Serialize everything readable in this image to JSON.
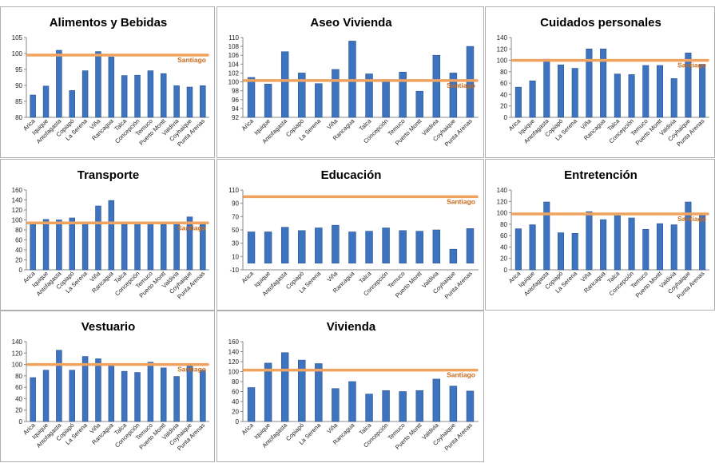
{
  "chart_data": [
    {
      "type": "bar",
      "title": "Alimentos y Bebidas",
      "categories": [
        "Arica",
        "Iquique",
        "Antofagasta",
        "Copiapó",
        "La Serena",
        "Viña",
        "Rancagua",
        "Talca",
        "Concepción",
        "Temuco",
        "Puerto Montt",
        "Valdivia",
        "Coyhaique",
        "Punta Arenas"
      ],
      "values": [
        87,
        89.8,
        101,
        88.4,
        94.6,
        100.6,
        98.9,
        93.1,
        93.2,
        94.6,
        93.7,
        89.9,
        89.5,
        89.9
      ],
      "reference": {
        "label": "Santiago",
        "value": 99.5
      },
      "ylim": [
        80,
        105
      ],
      "yticks": [
        80,
        85,
        90,
        95,
        100,
        105
      ],
      "bar_color": "#3d73bf",
      "reference_color": "#f0a35e"
    },
    {
      "type": "bar",
      "title": "Aseo Vivienda",
      "categories": [
        "Arica",
        "Iquique",
        "Antofagasta",
        "Copiapó",
        "La Serena",
        "Viña",
        "Rancagua",
        "Talca",
        "Concepción",
        "Temuco",
        "Puerto Montt",
        "Valdivia",
        "Coyhaique",
        "Punta Arenas"
      ],
      "values": [
        101,
        99.5,
        106.8,
        102,
        99.6,
        102.8,
        109.2,
        101.8,
        100.2,
        102.2,
        97.9,
        106,
        102,
        108
      ],
      "reference": {
        "label": "Santiago",
        "value": 100.3
      },
      "ylim": [
        92,
        110
      ],
      "yticks": [
        92,
        94,
        96,
        98,
        100,
        102,
        104,
        106,
        108,
        110
      ],
      "bar_color": "#3d73bf",
      "reference_color": "#f0a35e"
    },
    {
      "type": "bar",
      "title": "Cuidados personales",
      "categories": [
        "Arica",
        "Iquique",
        "Antofagasta",
        "Copiapó",
        "La Serena",
        "Viña",
        "Rancagua",
        "Talca",
        "Concepción",
        "Temuco",
        "Puerto Montt",
        "Valdivia",
        "Coyhaique",
        "Punta Arenas"
      ],
      "values": [
        53,
        64,
        102,
        92,
        86,
        120,
        120,
        76,
        75,
        91,
        91,
        68,
        113,
        93
      ],
      "reference": {
        "label": "Santiago",
        "value": 100
      },
      "ylim": [
        0,
        140
      ],
      "yticks": [
        0,
        20,
        40,
        60,
        80,
        100,
        120,
        140
      ],
      "bar_color": "#3d73bf",
      "reference_color": "#f0a35e"
    },
    {
      "type": "bar",
      "title": "Transporte",
      "categories": [
        "Arica",
        "Iquique",
        "Antofagasta",
        "Copiapó",
        "La Serena",
        "Viña",
        "Rancagua",
        "Talca",
        "Concepción",
        "Temuco",
        "Puerto Montt",
        "Valdivia",
        "Coyhaique",
        "Punta Arenas"
      ],
      "values": [
        92,
        101,
        100,
        104,
        93,
        128,
        139,
        91,
        93,
        93,
        91,
        93,
        106,
        93
      ],
      "reference": {
        "label": "Santiago",
        "value": 94
      },
      "ylim": [
        0,
        160
      ],
      "yticks": [
        0,
        20,
        40,
        60,
        80,
        100,
        120,
        140,
        160
      ],
      "bar_color": "#3d73bf",
      "reference_color": "#f0a35e"
    },
    {
      "type": "bar",
      "title": "Educación",
      "categories": [
        "Arica",
        "Iquique",
        "Antofagasta",
        "Copiapó",
        "La Serena",
        "Viña",
        "Rancagua",
        "Talca",
        "Concepción",
        "Temuco",
        "Puerto Montt",
        "Valdivia",
        "Coyhaique",
        "Punta Arenas"
      ],
      "values": [
        47,
        47,
        54,
        49,
        53,
        57,
        47,
        48,
        53,
        49,
        48,
        50,
        21,
        52
      ],
      "reference": {
        "label": "Santiago",
        "value": 100
      },
      "ylim": [
        -10,
        110
      ],
      "yticks": [
        -10,
        10,
        30,
        50,
        70,
        90,
        110
      ],
      "bar_color": "#3d73bf",
      "reference_color": "#f0a35e"
    },
    {
      "type": "bar",
      "title": "Entretención",
      "categories": [
        "Arica",
        "Iquique",
        "Antofagasta",
        "Copiapó",
        "La Serena",
        "Viña",
        "Rancagua",
        "Talca",
        "Concepción",
        "Temuco",
        "Puerto Montt",
        "Valdivia",
        "Coyhaique",
        "Punta Arenas"
      ],
      "values": [
        72,
        79,
        119,
        65,
        64,
        102,
        88,
        95,
        91,
        71,
        81,
        79,
        119,
        96
      ],
      "reference": {
        "label": "Santiago",
        "value": 98
      },
      "ylim": [
        0,
        140
      ],
      "yticks": [
        0,
        20,
        40,
        60,
        80,
        100,
        120,
        140
      ],
      "bar_color": "#3d73bf",
      "reference_color": "#f0a35e"
    },
    {
      "type": "bar",
      "title": "Vestuario",
      "categories": [
        "Arica",
        "Iquique",
        "Antofagasta",
        "Copiapó",
        "La Serena",
        "Viña",
        "Rancagua",
        "Talca",
        "Concepción",
        "Temuco",
        "Puerto Montt",
        "Valdivia",
        "Coyhaique",
        "Punta Arenas"
      ],
      "values": [
        77,
        90,
        125,
        90,
        114,
        110,
        99,
        88,
        86,
        104,
        94,
        79,
        100,
        90
      ],
      "reference": {
        "label": "Santiago",
        "value": 100
      },
      "ylim": [
        0,
        140
      ],
      "yticks": [
        0,
        20,
        40,
        60,
        80,
        100,
        120,
        140
      ],
      "bar_color": "#3d73bf",
      "reference_color": "#f0a35e"
    },
    {
      "type": "bar",
      "title": "Vivienda",
      "categories": [
        "Arica",
        "Iquique",
        "Antofagasta",
        "Copiapó",
        "La Serena",
        "Viña",
        "Rancagua",
        "Talca",
        "Concepción",
        "Temuco",
        "Puerto Montt",
        "Valdivia",
        "Coyhaique",
        "Punta Arenas"
      ],
      "values": [
        68,
        117,
        138,
        123,
        116,
        66,
        80,
        55,
        62,
        60,
        62,
        85,
        71,
        61
      ],
      "reference": {
        "label": "Santiago",
        "value": 103
      },
      "ylim": [
        0,
        160
      ],
      "yticks": [
        0,
        20,
        40,
        60,
        80,
        100,
        120,
        140,
        160
      ],
      "bar_color": "#3d73bf",
      "reference_color": "#f0a35e"
    }
  ]
}
